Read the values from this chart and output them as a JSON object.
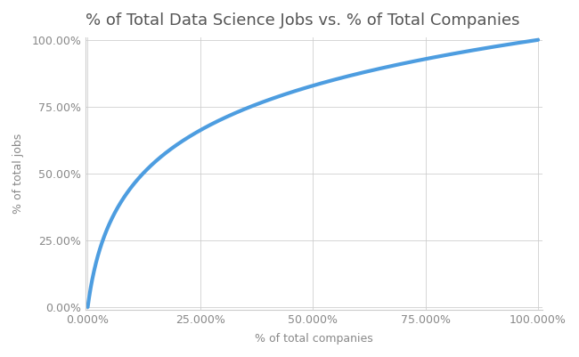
{
  "title": "% of Total Data Science Jobs vs. % of Total Companies",
  "xlabel": "% of total companies",
  "ylabel": "% of total jobs",
  "x_ticks": [
    0.0,
    0.25,
    0.5,
    0.75,
    1.0
  ],
  "x_tick_labels": [
    "0.000%",
    "25.000%",
    "50.000%",
    "75.000%",
    "100.000%"
  ],
  "y_ticks": [
    0.0,
    0.25,
    0.5,
    0.75,
    1.0
  ],
  "y_tick_labels": [
    "0.00%",
    "25.00%",
    "50.00%",
    "75.00%",
    "100.00%"
  ],
  "line_color": "#4d9de0",
  "background_color": "#ffffff",
  "grid_color": "#cccccc",
  "title_fontsize": 13,
  "axis_label_fontsize": 9,
  "tick_fontsize": 9,
  "pareto_exponent": 0.28
}
